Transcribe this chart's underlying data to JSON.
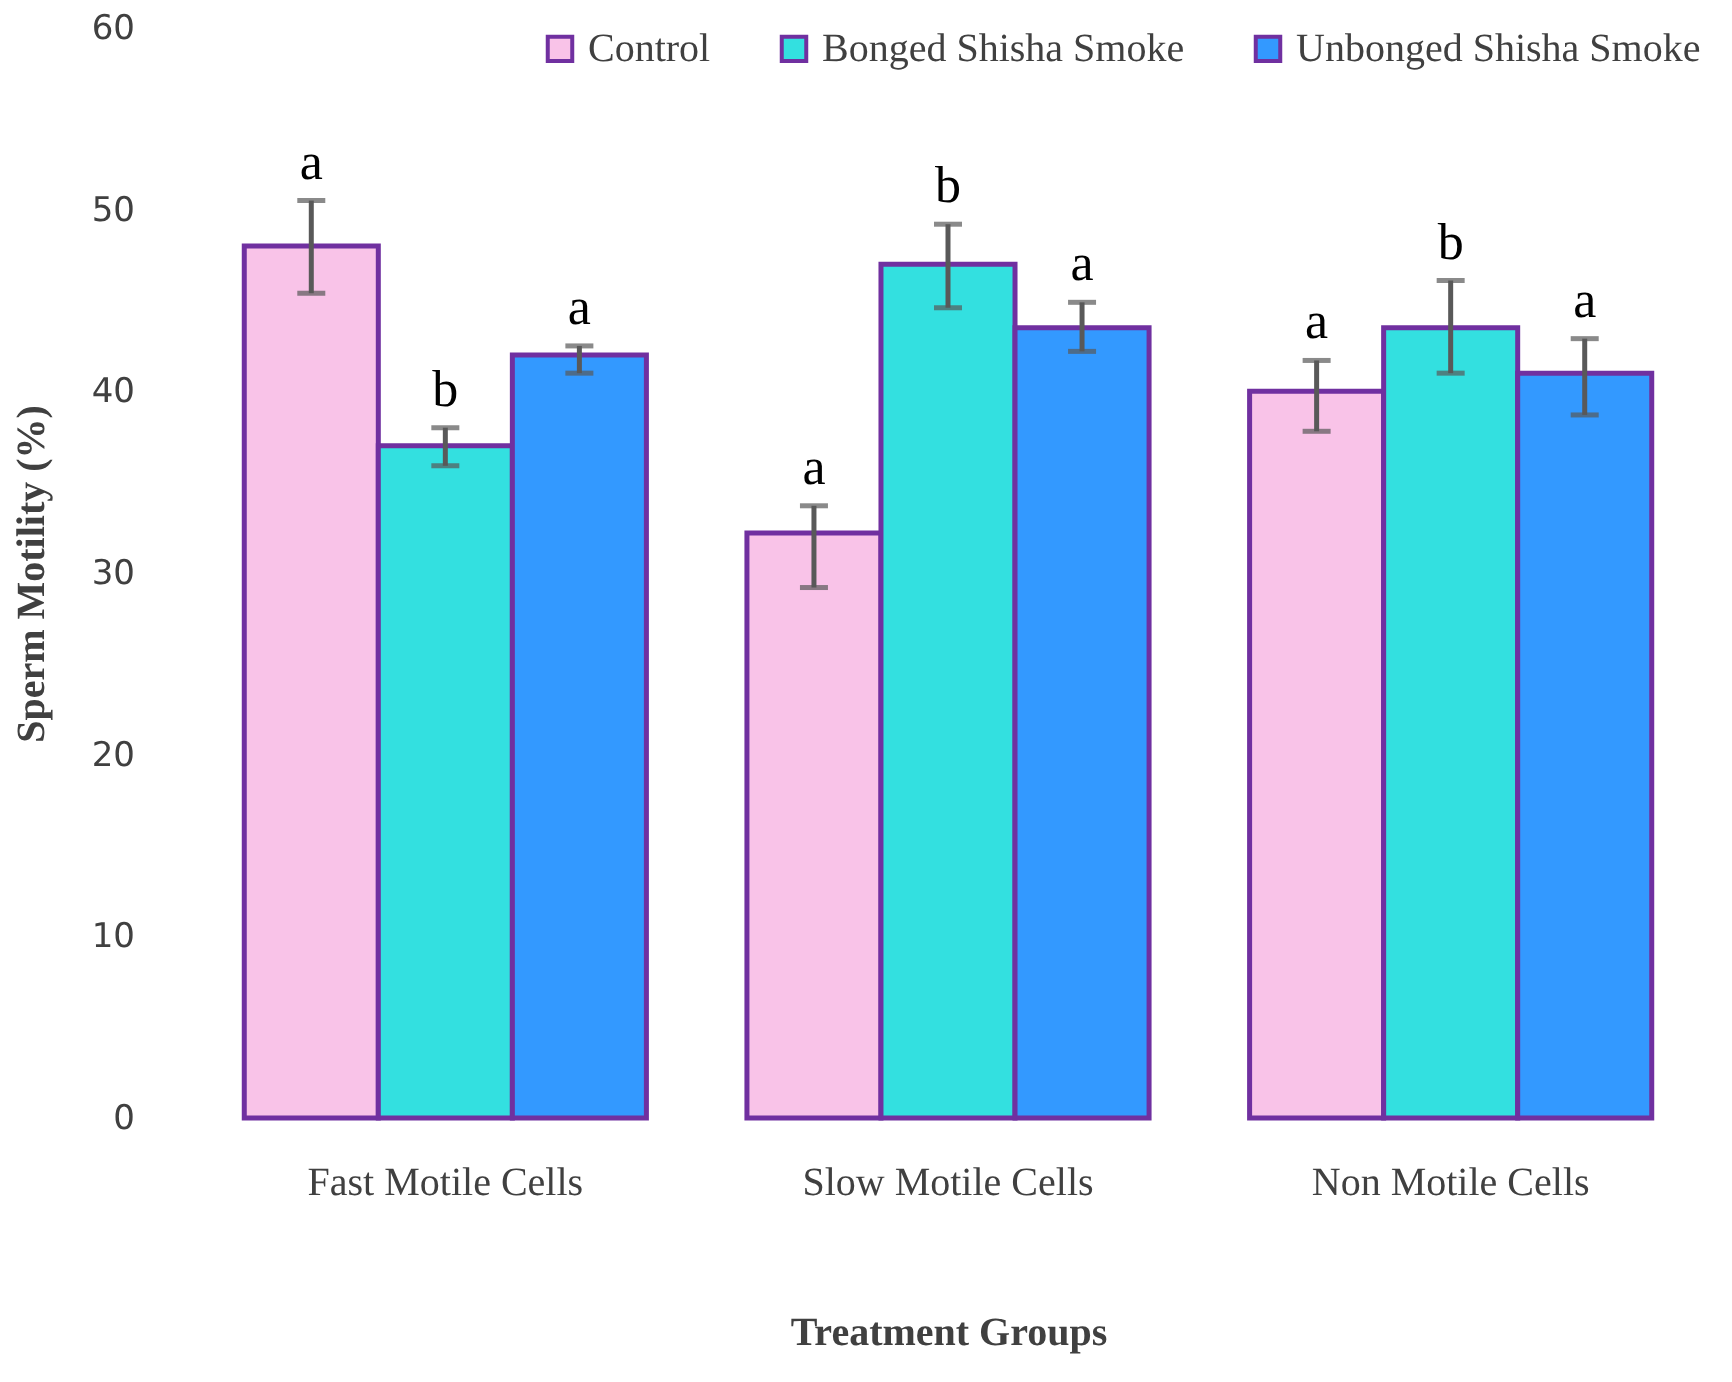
{
  "chart_data": {
    "type": "bar",
    "xlabel": "Treatment Groups",
    "ylabel": "Sperm Motility (%)",
    "categories": [
      "Fast Motile Cells",
      "Slow Motile Cells",
      "Non Motile Cells"
    ],
    "series": [
      {
        "name": "Control",
        "color": "#f9c3e8",
        "values": [
          48,
          32.2,
          40
        ],
        "errors": [
          [
            45.4,
            50.5
          ],
          [
            29.2,
            33.7
          ],
          [
            37.8,
            41.7
          ]
        ]
      },
      {
        "name": "Bonged Shisha Smoke",
        "color": "#33e0e0",
        "values": [
          37,
          47,
          43.5
        ],
        "errors": [
          [
            35.9,
            38
          ],
          [
            44.6,
            49.2
          ],
          [
            41,
            46.1
          ]
        ]
      },
      {
        "name": "Unbonged Shisha Smoke",
        "color": "#3399ff",
        "values": [
          42,
          43.5,
          41
        ],
        "errors": [
          [
            41,
            42.5
          ],
          [
            42.2,
            44.9
          ],
          [
            38.7,
            42.9
          ]
        ]
      }
    ],
    "ylim": [
      0,
      60
    ],
    "yticks": [
      0,
      10,
      20,
      30,
      40,
      50,
      60
    ],
    "grid": false,
    "legend": "top right",
    "annotations": [
      "a",
      "b",
      "a",
      "a",
      "b",
      "a",
      "a",
      "b",
      "a"
    ]
  }
}
